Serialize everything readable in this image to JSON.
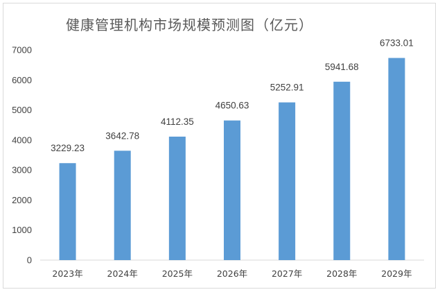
{
  "chart_data": {
    "type": "bar",
    "title": "健康管理机构市场规模预测图（亿元）",
    "categories": [
      "2023年",
      "2024年",
      "2025年",
      "2026年",
      "2027年",
      "2028年",
      "2029年"
    ],
    "values": [
      3229.23,
      3642.78,
      4112.35,
      4650.63,
      5252.91,
      5941.68,
      6733.01
    ],
    "data_labels": [
      "3229.23",
      "3642.78",
      "4112.35",
      "4650.63",
      "5252.91",
      "5941.68",
      "6733.01"
    ],
    "y_ticks": [
      0,
      1000,
      2000,
      3000,
      4000,
      5000,
      6000,
      7000
    ],
    "ylim": [
      0,
      7000
    ],
    "xlabel": "",
    "ylabel": "",
    "grid": false,
    "bar_color": "#5b9bd5"
  }
}
